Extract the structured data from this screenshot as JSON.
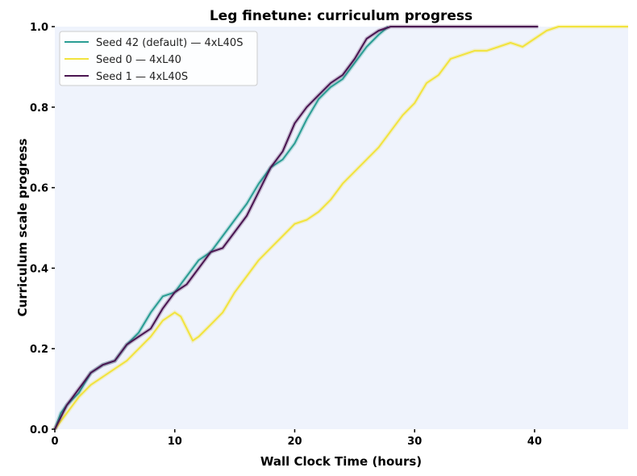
{
  "chart_data": {
    "type": "line",
    "title": "Leg finetune: curriculum progress",
    "xlabel": "Wall Clock Time (hours)",
    "ylabel": "Curriculum scale progress",
    "xlim": [
      0,
      47.8
    ],
    "ylim": [
      0.0,
      1.0
    ],
    "xticks": [
      0,
      10,
      20,
      30,
      40
    ],
    "yticks": [
      "0.0",
      "0.2",
      "0.4",
      "0.6",
      "0.8",
      "1.0"
    ],
    "grid": false,
    "background": "#eff3fc",
    "legend_position": "upper left",
    "series": [
      {
        "name": "Seed 42 (default) — 4xL40S",
        "color": "#2a9d94",
        "x": [
          0,
          0.5,
          1,
          2,
          3,
          4,
          5,
          6,
          7,
          8,
          9,
          10,
          11,
          12,
          13,
          14,
          15,
          16,
          17,
          18,
          19,
          20,
          21,
          22,
          23,
          24,
          25,
          26,
          27,
          27.8
        ],
        "y": [
          0,
          0.04,
          0.06,
          0.09,
          0.14,
          0.16,
          0.17,
          0.21,
          0.24,
          0.29,
          0.33,
          0.34,
          0.38,
          0.42,
          0.44,
          0.48,
          0.52,
          0.56,
          0.61,
          0.65,
          0.67,
          0.71,
          0.77,
          0.82,
          0.85,
          0.87,
          0.91,
          0.95,
          0.98,
          1.0
        ]
      },
      {
        "name": "Seed 0 — 4xL40",
        "color": "#f2e33d",
        "x": [
          0,
          1,
          2,
          3,
          4,
          5,
          6,
          7,
          8,
          9,
          10,
          10.5,
          11.5,
          12,
          13,
          14,
          15,
          16,
          17,
          18,
          19,
          20,
          21,
          22,
          23,
          24,
          25,
          26,
          27,
          28,
          29,
          30,
          31,
          32,
          33,
          34,
          35,
          36,
          37,
          38,
          39,
          40,
          41,
          42,
          47.8
        ],
        "y": [
          0,
          0.04,
          0.08,
          0.11,
          0.13,
          0.15,
          0.17,
          0.2,
          0.23,
          0.27,
          0.29,
          0.28,
          0.22,
          0.23,
          0.26,
          0.29,
          0.34,
          0.38,
          0.42,
          0.45,
          0.48,
          0.51,
          0.52,
          0.54,
          0.57,
          0.61,
          0.64,
          0.67,
          0.7,
          0.74,
          0.78,
          0.81,
          0.86,
          0.88,
          0.92,
          0.93,
          0.94,
          0.94,
          0.95,
          0.96,
          0.95,
          0.97,
          0.99,
          1.0,
          1.0
        ]
      },
      {
        "name": "Seed 1 — 4xL40S",
        "color": "#4a1551",
        "x": [
          0,
          1,
          2,
          3,
          4,
          5,
          6,
          7,
          8,
          9,
          10,
          11,
          12,
          13,
          14,
          15,
          16,
          17,
          18,
          19,
          20,
          21,
          22,
          23,
          24,
          25,
          26,
          27,
          28,
          40.3
        ],
        "y": [
          0,
          0.06,
          0.1,
          0.14,
          0.16,
          0.17,
          0.21,
          0.23,
          0.25,
          0.3,
          0.34,
          0.36,
          0.4,
          0.44,
          0.45,
          0.49,
          0.53,
          0.59,
          0.65,
          0.69,
          0.76,
          0.8,
          0.83,
          0.86,
          0.88,
          0.92,
          0.97,
          0.99,
          1.0,
          1.0
        ]
      }
    ]
  }
}
